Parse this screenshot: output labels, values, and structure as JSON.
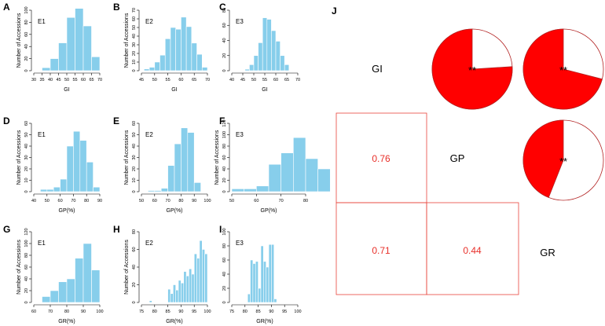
{
  "colors": {
    "bar": "#87CEEB",
    "pie_fill": "#FF0000",
    "pie_edge": "#B22222",
    "box_edge": "#E8453C",
    "coef": "#E8302A"
  },
  "chart_data": [
    {
      "type": "bar",
      "panel": "A",
      "env": "E1",
      "xlabel": "GI",
      "ylabel": "Number of Accessions",
      "xlim": [
        30,
        70
      ],
      "ylim": [
        0,
        100
      ],
      "xticks": [
        30,
        35,
        40,
        45,
        50,
        55,
        60,
        65,
        70
      ],
      "yticks": [
        0,
        20,
        40,
        60,
        80,
        100
      ],
      "edges": [
        30,
        35,
        40,
        45,
        50,
        55,
        60,
        65,
        70
      ],
      "values": [
        0,
        5,
        20,
        46,
        88,
        103,
        74,
        23
      ]
    },
    {
      "type": "bar",
      "panel": "B",
      "env": "E2",
      "xlabel": "GI",
      "ylabel": "Number of Accessions",
      "xlim": [
        45,
        70
      ],
      "ylim": [
        0,
        70
      ],
      "xticks": [
        45,
        50,
        55,
        60,
        65,
        70
      ],
      "yticks": [
        0,
        10,
        20,
        30,
        40,
        50,
        60,
        70
      ],
      "edges": [
        46,
        48,
        50,
        52,
        54,
        56,
        58,
        60,
        62,
        64,
        66,
        68,
        70
      ],
      "values": [
        2,
        4,
        10,
        18,
        37,
        50,
        48,
        62,
        51,
        32,
        19,
        4
      ]
    },
    {
      "type": "bar",
      "panel": "C",
      "env": "E3",
      "xlabel": "GI",
      "ylabel": "",
      "xlim": [
        40,
        70
      ],
      "ylim": [
        0,
        80
      ],
      "xticks": [
        40,
        45,
        50,
        55,
        60,
        65,
        70
      ],
      "yticks": [
        0,
        20,
        40,
        60,
        80
      ],
      "edges": [
        46,
        48,
        50,
        52,
        54,
        56,
        58,
        60,
        62,
        64,
        66
      ],
      "values": [
        2,
        8,
        20,
        37,
        70,
        68,
        53,
        39,
        20,
        8,
        3
      ]
    },
    {
      "type": "bar",
      "panel": "D",
      "env": "E1",
      "xlabel": "GP(%)",
      "ylabel": "Number of Accessions",
      "xlim": [
        40,
        90
      ],
      "ylim": [
        0,
        60
      ],
      "xticks": [
        40,
        50,
        60,
        70,
        80,
        90
      ],
      "yticks": [
        0,
        10,
        20,
        30,
        40,
        50,
        60
      ],
      "edges": [
        45,
        50,
        55,
        60,
        65,
        70,
        75,
        80,
        85,
        90
      ],
      "values": [
        2,
        2,
        4,
        11,
        40,
        53,
        45,
        26,
        4
      ]
    },
    {
      "type": "bar",
      "panel": "E",
      "env": "E2",
      "xlabel": "GP(%)",
      "ylabel": "Number of Accessions",
      "xlim": [
        50,
        100
      ],
      "ylim": [
        0,
        60
      ],
      "xticks": [
        50,
        60,
        70,
        80,
        90,
        100
      ],
      "yticks": [
        0,
        10,
        20,
        30,
        40,
        50,
        60
      ],
      "edges": [
        55,
        60,
        65,
        70,
        75,
        80,
        85,
        90,
        95
      ],
      "values": [
        1,
        1,
        3,
        23,
        42,
        56,
        52,
        8
      ]
    },
    {
      "type": "bar",
      "panel": "F",
      "env": "E3",
      "xlabel": "GP(%)",
      "ylabel": "Number of Accessions",
      "xlim": [
        50,
        80
      ],
      "ylim": [
        0,
        120
      ],
      "xticks": [
        50,
        60,
        70,
        80
      ],
      "yticks": [
        0,
        20,
        40,
        60,
        80,
        100,
        120
      ],
      "edges": [
        50,
        55,
        60,
        65,
        70,
        75,
        80,
        85,
        90
      ],
      "values": [
        5,
        5,
        10,
        48,
        68,
        95,
        58,
        40
      ]
    },
    {
      "type": "bar",
      "panel": "G",
      "env": "E1",
      "xlabel": "GR(%)",
      "ylabel": "Number of Accessions",
      "xlim": [
        60,
        100
      ],
      "ylim": [
        0,
        120
      ],
      "xticks": [
        60,
        70,
        80,
        90,
        100
      ],
      "yticks": [
        0,
        20,
        40,
        60,
        80,
        100,
        120
      ],
      "edges": [
        65,
        70,
        75,
        80,
        85,
        90,
        95,
        100
      ],
      "values": [
        10,
        20,
        35,
        40,
        75,
        100,
        55
      ]
    },
    {
      "type": "bar",
      "panel": "H",
      "env": "E2",
      "xlabel": "GR(%)",
      "ylabel": "Number of Accessions",
      "xlim": [
        75,
        100
      ],
      "ylim": [
        0,
        80
      ],
      "xticks": [
        75,
        80,
        85,
        90,
        95,
        100
      ],
      "yticks": [
        0,
        20,
        40,
        60,
        80
      ],
      "edges": [
        78,
        79,
        80,
        81,
        82,
        83,
        84,
        85,
        86,
        87,
        88,
        89,
        90,
        91,
        92,
        93,
        94,
        95,
        96,
        97,
        98,
        99,
        100
      ],
      "values": [
        2,
        0,
        0,
        0,
        0,
        0,
        0,
        15,
        10,
        20,
        14,
        25,
        22,
        35,
        30,
        38,
        32,
        55,
        50,
        70,
        60,
        55
      ]
    },
    {
      "type": "bar",
      "panel": "I",
      "env": "E3",
      "xlabel": "GR(%)",
      "ylabel": "",
      "xlim": [
        75,
        100
      ],
      "ylim": [
        0,
        100
      ],
      "xticks": [
        75,
        80,
        85,
        90,
        95,
        100
      ],
      "yticks": [
        0,
        20,
        40,
        60,
        80,
        100
      ],
      "edges": [
        81,
        82,
        83,
        84,
        85,
        86,
        87,
        88,
        89,
        90,
        91,
        92
      ],
      "values": [
        12,
        60,
        55,
        58,
        20,
        80,
        58,
        50,
        82,
        82,
        5
      ]
    },
    {
      "type": "table",
      "panel": "J",
      "variables": [
        "GI",
        "GP",
        "GR"
      ],
      "lower_triangle": [
        {
          "row": "GP",
          "col": "GI",
          "value": "0.76"
        },
        {
          "row": "GR",
          "col": "GI",
          "value": "0.71"
        },
        {
          "row": "GR",
          "col": "GP",
          "value": "0.44"
        }
      ],
      "upper_triangle": [
        {
          "row": "GI",
          "col": "GP",
          "r": 0.76,
          "sig": "**"
        },
        {
          "row": "GI",
          "col": "GR",
          "r": 0.71,
          "sig": "**"
        },
        {
          "row": "GP",
          "col": "GR",
          "r": 0.44,
          "sig": "**"
        }
      ]
    }
  ]
}
